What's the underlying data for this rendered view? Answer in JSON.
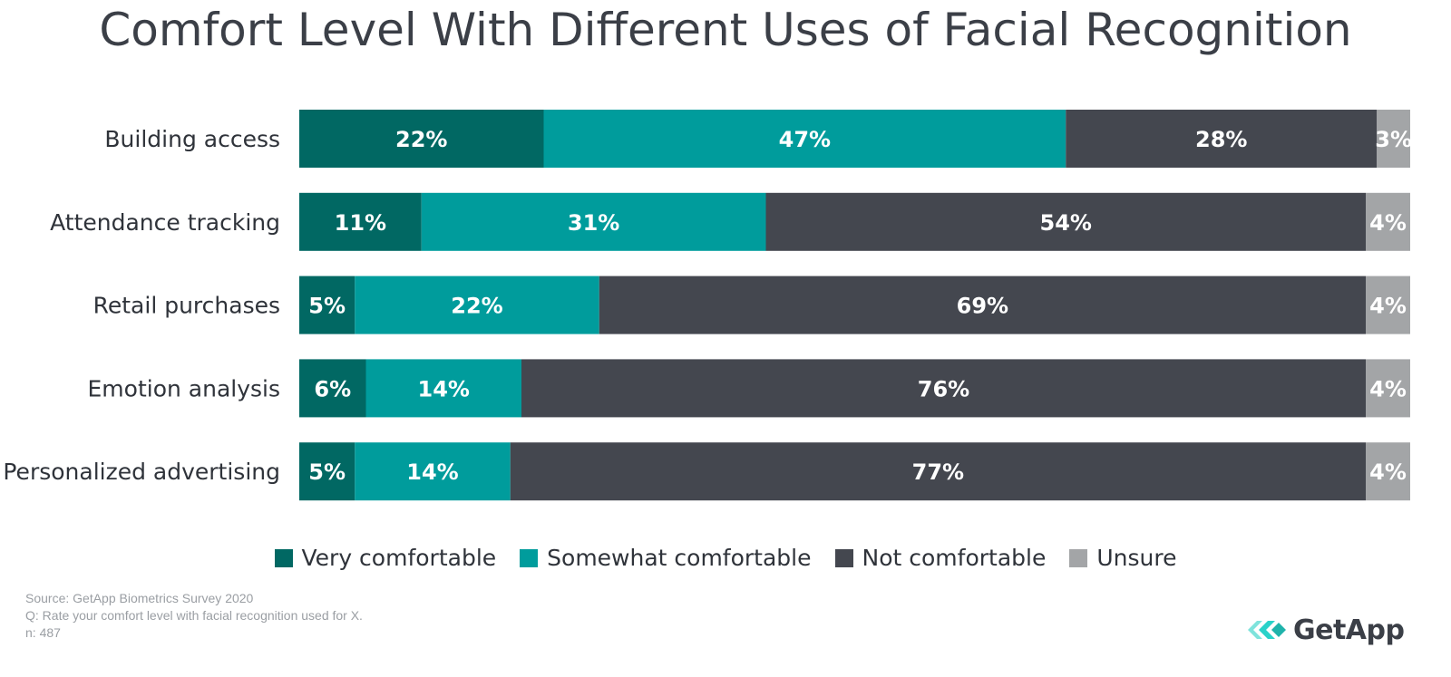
{
  "chart_data": {
    "type": "bar",
    "orientation": "horizontal",
    "stacked": true,
    "title": "Comfort Level With Different Uses of Facial Recognition",
    "categories": [
      "Building access",
      "Attendance tracking",
      "Retail purchases",
      "Emotion analysis",
      "Personalized advertising"
    ],
    "series": [
      {
        "name": "Very comfortable",
        "color": "#016863",
        "values": [
          22,
          11,
          5,
          6,
          5
        ]
      },
      {
        "name": "Somewhat comfortable",
        "color": "#009c9c",
        "values": [
          47,
          31,
          22,
          14,
          14
        ]
      },
      {
        "name": "Not comfortable",
        "color": "#44474f",
        "values": [
          28,
          54,
          69,
          76,
          77
        ]
      },
      {
        "name": "Unsure",
        "color": "#a3a5a7",
        "values": [
          3,
          4,
          4,
          4,
          4
        ]
      }
    ],
    "value_suffix": "%",
    "legend_position": "bottom"
  },
  "footnote": {
    "source": "Source: GetApp Biometrics Survey 2020",
    "question": "Q: Rate your comfort level with facial recognition used for X.",
    "n": "n: 487"
  },
  "brand": {
    "name": "GetApp",
    "icon": "getapp-chevrons-icon",
    "accent": "#2ad2c9"
  }
}
